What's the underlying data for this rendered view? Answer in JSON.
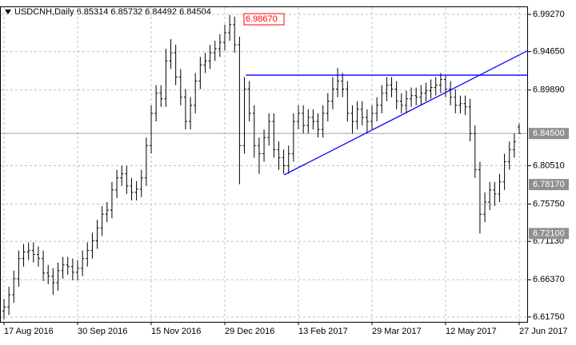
{
  "chart_data": {
    "type": "ohlc",
    "title": "USDCNH,Daily  6.85314 6.85732 6.84492 6.84504",
    "categories": [
      "17 Aug 2016",
      null,
      null,
      null,
      null,
      null,
      null,
      null,
      null,
      null,
      null,
      null,
      null,
      null,
      null,
      "30 Sep 2016",
      null,
      null,
      null,
      null,
      null,
      null,
      null,
      null,
      null,
      null,
      null,
      null,
      null,
      null,
      "15 Nov 2016",
      null,
      null,
      null,
      null,
      null,
      null,
      null,
      null,
      null,
      null,
      null,
      null,
      null,
      null,
      "29 Dec 2016",
      null,
      null,
      null,
      null,
      null,
      null,
      null,
      null,
      null,
      null,
      null,
      null,
      null,
      null,
      "13 Feb 2017",
      null,
      null,
      null,
      null,
      null,
      null,
      null,
      null,
      null,
      null,
      null,
      null,
      null,
      null,
      "29 Mar 2017",
      null,
      null,
      null,
      null,
      null,
      null,
      null,
      null,
      null,
      null,
      null,
      null,
      null,
      null,
      "12 May 2017",
      null,
      null,
      null,
      null,
      null,
      null,
      null,
      null,
      null,
      null,
      null,
      null,
      null,
      null,
      "27 Jun 2017"
    ],
    "open": [
      6.625,
      6.63,
      6.645,
      6.665,
      6.69,
      6.698,
      6.7,
      6.695,
      6.69,
      6.672,
      6.668,
      6.66,
      6.675,
      6.682,
      6.68,
      6.673,
      6.678,
      6.69,
      6.7,
      6.712,
      6.728,
      6.745,
      6.75,
      6.775,
      6.79,
      6.795,
      6.78,
      6.772,
      6.776,
      6.79,
      6.83,
      6.87,
      6.895,
      6.888,
      6.935,
      6.945,
      6.915,
      6.89,
      6.86,
      6.88,
      6.91,
      6.93,
      6.935,
      6.945,
      6.95,
      6.958,
      6.97,
      6.98,
      6.955,
      6.83,
      6.9,
      6.87,
      6.83,
      6.82,
      6.84,
      6.86,
      6.825,
      6.815,
      6.805,
      6.82,
      6.86,
      6.87,
      6.855,
      6.865,
      6.86,
      6.85,
      6.87,
      6.885,
      6.9,
      6.91,
      6.9,
      6.87,
      6.86,
      6.875,
      6.865,
      6.86,
      6.87,
      6.88,
      6.895,
      6.905,
      6.9,
      6.885,
      6.88,
      6.888,
      6.892,
      6.89,
      6.895,
      6.898,
      6.902,
      6.905,
      6.912,
      6.9,
      6.89,
      6.88,
      6.882,
      6.878,
      6.845,
      6.8,
      6.745,
      6.76,
      6.775,
      6.77,
      6.785,
      6.81,
      6.825,
      6.8531
    ],
    "high": [
      6.64,
      6.655,
      6.675,
      6.7,
      6.708,
      6.71,
      6.71,
      6.705,
      6.7,
      6.682,
      6.678,
      6.685,
      6.692,
      6.692,
      6.69,
      6.688,
      6.7,
      6.71,
      6.722,
      6.738,
      6.755,
      6.76,
      6.785,
      6.8,
      6.805,
      6.805,
      6.79,
      6.786,
      6.8,
      6.84,
      6.88,
      6.905,
      6.905,
      6.95,
      6.962,
      6.955,
      6.925,
      6.9,
      6.89,
      6.92,
      6.94,
      6.945,
      6.955,
      6.96,
      6.968,
      6.98,
      6.992,
      6.99,
      6.965,
      6.915,
      6.91,
      6.88,
      6.84,
      6.85,
      6.87,
      6.87,
      6.835,
      6.825,
      6.83,
      6.87,
      6.88,
      6.88,
      6.875,
      6.875,
      6.87,
      6.88,
      6.895,
      6.915,
      6.926,
      6.92,
      6.91,
      6.88,
      6.885,
      6.885,
      6.875,
      6.88,
      6.89,
      6.905,
      6.915,
      6.915,
      6.91,
      6.895,
      6.898,
      6.902,
      6.902,
      6.905,
      6.908,
      6.912,
      6.915,
      6.92,
      6.918,
      6.91,
      6.9,
      6.892,
      6.892,
      6.888,
      6.855,
      6.81,
      6.772,
      6.785,
      6.785,
      6.795,
      6.82,
      6.835,
      6.845,
      6.8573
    ],
    "low": [
      6.615,
      6.62,
      6.635,
      6.655,
      6.68,
      6.688,
      6.685,
      6.68,
      6.662,
      6.658,
      6.645,
      6.65,
      6.665,
      6.67,
      6.663,
      6.663,
      6.668,
      6.68,
      6.69,
      6.702,
      6.718,
      6.735,
      6.74,
      6.765,
      6.78,
      6.77,
      6.762,
      6.762,
      6.766,
      6.78,
      6.82,
      6.86,
      6.878,
      6.878,
      6.925,
      6.905,
      6.88,
      6.85,
      6.85,
      6.87,
      6.9,
      6.92,
      6.925,
      6.935,
      6.94,
      6.948,
      6.96,
      6.945,
      6.782,
      6.82,
      6.86,
      6.815,
      6.795,
      6.81,
      6.83,
      6.815,
      6.8,
      6.795,
      6.795,
      6.81,
      6.85,
      6.845,
      6.845,
      6.85,
      6.84,
      6.84,
      6.86,
      6.875,
      6.89,
      6.89,
      6.86,
      6.845,
      6.85,
      6.855,
      6.845,
      6.85,
      6.86,
      6.87,
      6.885,
      6.89,
      6.875,
      6.87,
      6.87,
      6.878,
      6.88,
      6.88,
      6.885,
      6.888,
      6.892,
      6.895,
      6.89,
      6.88,
      6.87,
      6.87,
      6.868,
      6.835,
      6.79,
      6.721,
      6.735,
      6.75,
      6.755,
      6.76,
      6.775,
      6.8,
      6.815,
      6.8449
    ],
    "close": [
      6.63,
      6.645,
      6.665,
      6.69,
      6.698,
      6.7,
      6.695,
      6.69,
      6.672,
      6.668,
      6.66,
      6.675,
      6.682,
      6.68,
      6.673,
      6.678,
      6.69,
      6.7,
      6.712,
      6.728,
      6.745,
      6.75,
      6.775,
      6.79,
      6.795,
      6.78,
      6.772,
      6.776,
      6.79,
      6.83,
      6.87,
      6.895,
      6.888,
      6.935,
      6.945,
      6.915,
      6.89,
      6.86,
      6.88,
      6.91,
      6.93,
      6.935,
      6.945,
      6.95,
      6.958,
      6.97,
      6.98,
      6.955,
      6.83,
      6.9,
      6.87,
      6.83,
      6.82,
      6.84,
      6.86,
      6.825,
      6.815,
      6.805,
      6.82,
      6.86,
      6.87,
      6.855,
      6.865,
      6.86,
      6.85,
      6.87,
      6.885,
      6.9,
      6.91,
      6.9,
      6.87,
      6.86,
      6.875,
      6.865,
      6.86,
      6.87,
      6.88,
      6.895,
      6.905,
      6.9,
      6.885,
      6.88,
      6.888,
      6.892,
      6.89,
      6.895,
      6.898,
      6.902,
      6.905,
      6.912,
      6.9,
      6.89,
      6.88,
      6.882,
      6.878,
      6.845,
      6.8,
      6.745,
      6.76,
      6.775,
      6.77,
      6.785,
      6.81,
      6.825,
      6.835,
      6.845
    ],
    "color": "#000000",
    "ylim": [
      6.6115,
      7.0026
    ],
    "yticks": [
      {
        "value": 6.9927,
        "label": "6.99270"
      },
      {
        "value": 6.9465,
        "label": "6.94650"
      },
      {
        "value": 6.8989,
        "label": "6.89890"
      },
      {
        "value": 6.8051,
        "label": "6.80510"
      },
      {
        "value": 6.7575,
        "label": "6.75750"
      },
      {
        "value": 6.7113,
        "label": "6.71130"
      },
      {
        "value": 6.6637,
        "label": "6.66370"
      },
      {
        "value": 6.6175,
        "label": "6.61750"
      }
    ],
    "price_levels": [
      {
        "value": 6.845,
        "label": "6.84500"
      },
      {
        "value": 6.7817,
        "label": "6.78170"
      },
      {
        "value": 6.721,
        "label": "6.72100"
      }
    ],
    "grid": true,
    "annotation": {
      "value": 6.9867,
      "label": "6.98670",
      "color": "#ff0000"
    },
    "trendlines": [
      {
        "x": [
          49.3,
          106.8
        ],
        "y": [
          6.9174,
          6.9174
        ],
        "color": "#0000ff"
      },
      {
        "x": [
          57.1,
          106.8
        ],
        "y": [
          6.7937,
          6.948
        ],
        "color": "#0000ff"
      }
    ]
  }
}
